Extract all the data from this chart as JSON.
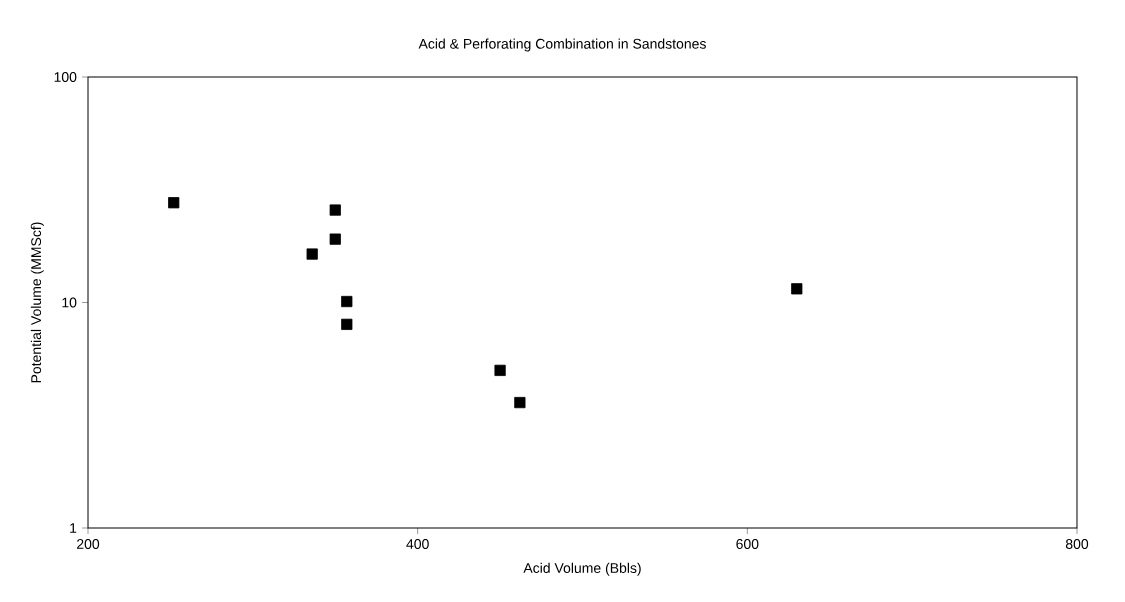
{
  "chart_data": {
    "type": "scatter",
    "title": "Acid & Perforating Combination in Sandstones",
    "xlabel": "Acid Volume (Bbls)",
    "ylabel": "Potential Volume (MMScf)",
    "x": [
      252,
      350,
      350,
      336,
      357,
      357,
      450,
      462,
      630
    ],
    "series": [
      {
        "color": "#000000",
        "values": [
          27.7,
          25.7,
          19.1,
          16.4,
          10.1,
          8.0,
          5.0,
          3.6,
          11.5
        ]
      }
    ],
    "xlim": [
      200,
      800
    ],
    "xticks": [
      200,
      400,
      600,
      800
    ],
    "ylim": [
      1,
      100
    ],
    "yticks": [
      1,
      10,
      100
    ],
    "log": "y",
    "grid": false,
    "marker": "square"
  }
}
